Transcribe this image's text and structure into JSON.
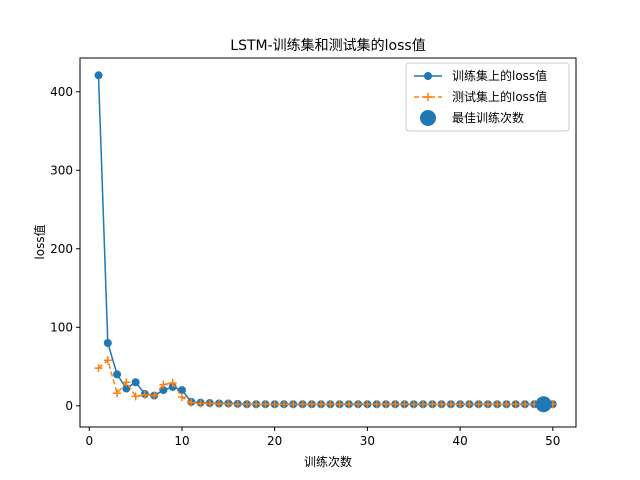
{
  "chart_data": {
    "type": "line",
    "title": "LSTM-训练集和测试集的loss值",
    "xlabel": "训练次数",
    "ylabel": "loss值",
    "xlim": [
      -1,
      52.5
    ],
    "ylim": [
      -27,
      443
    ],
    "xticks": [
      0,
      10,
      20,
      30,
      40,
      50
    ],
    "yticks": [
      0,
      100,
      200,
      300,
      400
    ],
    "grid": false,
    "legend_position": "top-right",
    "x": [
      1,
      2,
      3,
      4,
      5,
      6,
      7,
      8,
      9,
      10,
      11,
      12,
      13,
      14,
      15,
      16,
      17,
      18,
      19,
      20,
      21,
      22,
      23,
      24,
      25,
      26,
      27,
      28,
      29,
      30,
      31,
      32,
      33,
      34,
      35,
      36,
      37,
      38,
      39,
      40,
      41,
      42,
      43,
      44,
      45,
      46,
      47,
      48,
      49,
      50
    ],
    "series": [
      {
        "name": "训练集上的loss值",
        "color": "#1f77b4",
        "style": "solid-circle",
        "values": [
          421,
          80,
          40,
          22,
          30,
          15,
          13,
          20,
          24,
          20,
          5,
          4,
          3.5,
          3,
          3,
          2.5,
          2,
          2,
          2,
          2,
          2,
          2,
          2,
          2,
          2,
          2,
          2,
          2,
          2,
          2,
          2,
          2,
          2,
          2,
          2,
          2,
          2,
          2,
          2,
          2,
          2,
          2,
          2,
          2,
          2,
          2,
          2,
          2,
          2,
          2
        ]
      },
      {
        "name": "测试集上的loss值",
        "color": "#ff7f0e",
        "style": "dashed-plus",
        "values": [
          48,
          58,
          16,
          30,
          12,
          14,
          13,
          27,
          29,
          11,
          4,
          3,
          3,
          2.5,
          2.5,
          2,
          2,
          2,
          2,
          2,
          2,
          2,
          2,
          2,
          2,
          2,
          2,
          2,
          2,
          2,
          2,
          2,
          2,
          2,
          2,
          2,
          2,
          2,
          2,
          2,
          2,
          2,
          2,
          2,
          2,
          2,
          2,
          2,
          2,
          2
        ]
      }
    ],
    "best_point": {
      "name": "最佳训练次数",
      "color": "#1f77b4",
      "x": 49,
      "y": 2
    }
  }
}
